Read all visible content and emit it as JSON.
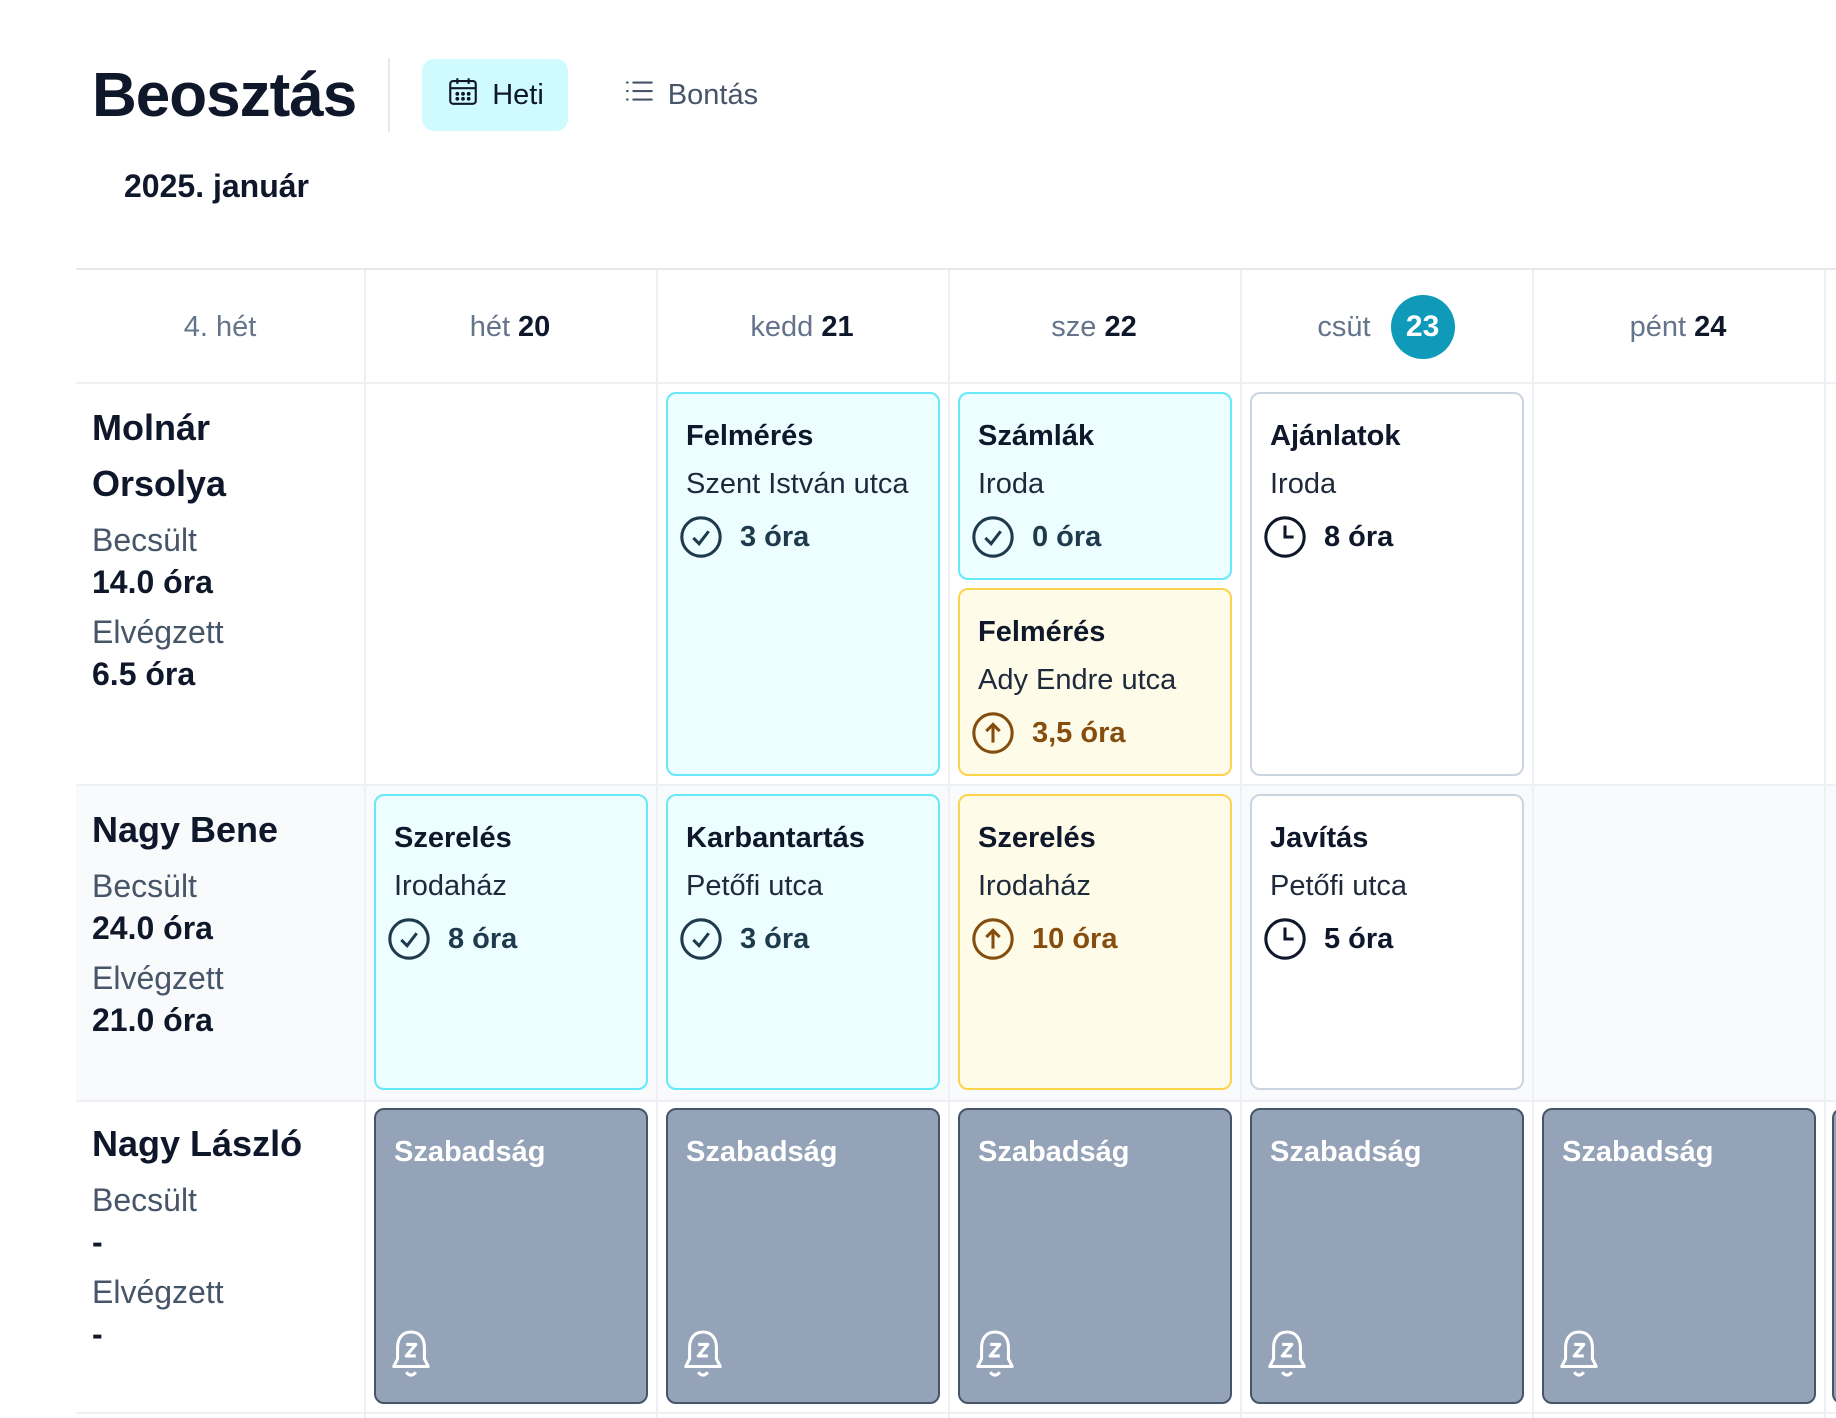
{
  "header": {
    "title": "Beosztás",
    "views": [
      {
        "label": "Heti",
        "icon": "calendar-icon",
        "active": true
      },
      {
        "label": "Bontás",
        "icon": "list-icon",
        "active": false
      }
    ],
    "month": "2025. január"
  },
  "colors": {
    "accent": "#0e9ab8",
    "done_bg": "#ecfeff",
    "in_progress_bg": "#fefce8",
    "leave_bg": "#94a3b8"
  },
  "week": {
    "label": "4. hét",
    "days": [
      {
        "name": "hét",
        "num": "20",
        "today": false
      },
      {
        "name": "kedd",
        "num": "21",
        "today": false
      },
      {
        "name": "sze",
        "num": "22",
        "today": false
      },
      {
        "name": "csüt",
        "num": "23",
        "today": true
      },
      {
        "name": "pént",
        "num": "24",
        "today": false
      }
    ]
  },
  "employees": [
    {
      "name": "Molnár Orsolya",
      "estimated_label": "Becsült",
      "estimated": "14.0 óra",
      "done_label": "Elvégzett",
      "done": "6.5 óra",
      "tasks": [
        {
          "title": "Felmérés",
          "location": "Szent István utca",
          "hours": "3 óra",
          "status": "done",
          "icon": "check-circle-icon"
        },
        {
          "title": "Számlák",
          "location": "Iroda",
          "hours": "0 óra",
          "status": "done",
          "icon": "check-circle-icon"
        },
        {
          "title": "Felmérés",
          "location": "Ady Endre utca",
          "hours": "3,5 óra",
          "status": "in-progress",
          "icon": "arrow-up-circle-icon"
        },
        {
          "title": "Ajánlatok",
          "location": "Iroda",
          "hours": "8 óra",
          "status": "pending",
          "icon": "clock-icon"
        }
      ]
    },
    {
      "name": "Nagy Bene",
      "estimated_label": "Becsült",
      "estimated": "24.0 óra",
      "done_label": "Elvégzett",
      "done": "21.0 óra",
      "tasks": [
        {
          "title": "Szerelés",
          "location": "Irodaház",
          "hours": "8 óra",
          "status": "done",
          "icon": "check-circle-icon"
        },
        {
          "title": "Karbantartás",
          "location": "Petőfi utca",
          "hours": "3 óra",
          "status": "done",
          "icon": "check-circle-icon"
        },
        {
          "title": "Szerelés",
          "location": "Irodaház",
          "hours": "10 óra",
          "status": "in-progress",
          "icon": "arrow-up-circle-icon"
        },
        {
          "title": "Javítás",
          "location": "Petőfi utca",
          "hours": "5 óra",
          "status": "pending",
          "icon": "clock-icon"
        }
      ]
    },
    {
      "name": "Nagy László",
      "estimated_label": "Becsült",
      "estimated": "-",
      "done_label": "Elvégzett",
      "done": "-",
      "leave_label": "Szabadság",
      "leave_icon": "bell-snooze-icon"
    }
  ]
}
